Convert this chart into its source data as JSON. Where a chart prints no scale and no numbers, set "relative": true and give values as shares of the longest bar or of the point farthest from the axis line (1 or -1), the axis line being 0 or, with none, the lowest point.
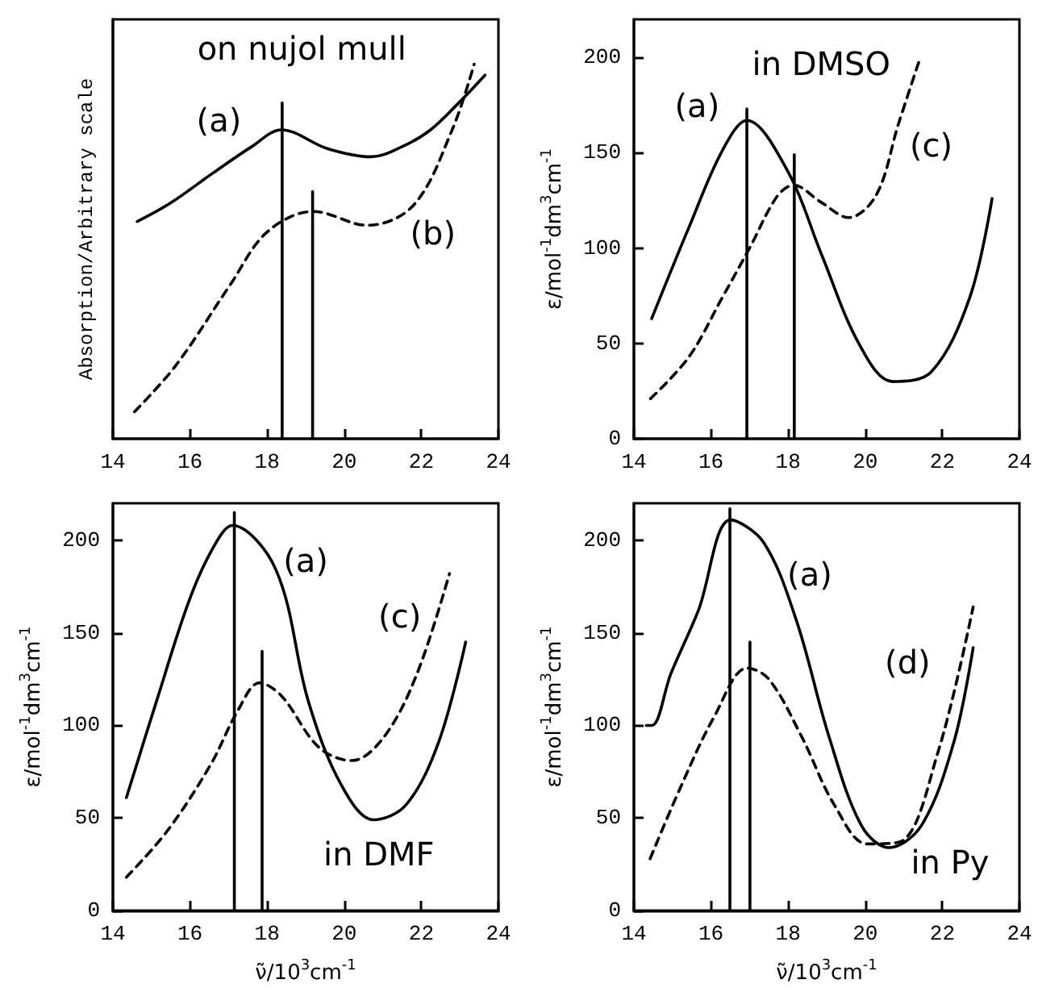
{
  "chart_data": [
    {
      "type": "line",
      "relative": true,
      "ylabel": "Absorption/Arbitrary scale",
      "xlim": [
        14,
        24
      ],
      "xticks": [
        14,
        16,
        18,
        20,
        22,
        24
      ],
      "tick_labels": "x",
      "marker": "none",
      "grid": false,
      "series": [
        {
          "color": "#000000",
          "line_style": "solid",
          "x": [
            14.63,
            15.5,
            16.6,
            17.6,
            18.37,
            19.56,
            20.7,
            21.5,
            22.24,
            23.0,
            23.65
          ],
          "values": [
            0.58,
            0.63,
            0.71,
            0.78,
            0.825,
            0.775,
            0.753,
            0.78,
            0.825,
            0.9,
            0.971
          ]
        },
        {
          "color": "#000000",
          "line_style": "dashed",
          "x": [
            14.56,
            15.62,
            17.03,
            18.0,
            19.2,
            20.6,
            21.8,
            22.8,
            23.37
          ],
          "values": [
            0.072,
            0.194,
            0.409,
            0.552,
            0.607,
            0.57,
            0.624,
            0.825,
            1.0
          ]
        },
        {
          "color": "#000000",
          "line_style": "solid",
          "x": [
            18.39,
            18.39
          ],
          "values": [
            0,
            0.897
          ]
        },
        {
          "color": "#000000",
          "line_style": "solid",
          "x": [
            19.18,
            19.18
          ],
          "values": [
            0,
            0.66
          ]
        }
      ],
      "annotations": [
        "on nujol mull",
        "(a)",
        "(b)"
      ]
    },
    {
      "type": "line",
      "ylabel": "ε/mol$^{-1}$dm$^{3}$cm$^{-1}$",
      "xlim": [
        14,
        24
      ],
      "xticks": [
        14,
        16,
        18,
        20,
        22,
        24
      ],
      "ylim": [
        0,
        220
      ],
      "yticks": [
        0,
        50,
        100,
        150,
        200
      ],
      "marker": "none",
      "grid": false,
      "series": [
        {
          "color": "#000000",
          "line_style": "solid",
          "x": [
            14.46,
            15.43,
            16.29,
            16.93,
            18.0,
            18.86,
            19.86,
            20.71,
            21.71,
            22.71,
            23.29
          ],
          "values": [
            63,
            111,
            151,
            167,
            140,
            97,
            49,
            30,
            35,
            74,
            126
          ]
        },
        {
          "color": "#000000",
          "line_style": "dashed",
          "x": [
            14.43,
            15.43,
            16.29,
            17.0,
            17.71,
            18.14,
            18.86,
            19.57,
            20.29,
            20.86,
            21.43
          ],
          "values": [
            21,
            43,
            74,
            100,
            127,
            133,
            124,
            116,
            128,
            165,
            200
          ]
        },
        {
          "color": "#000000",
          "line_style": "solid",
          "x": [
            16.93,
            16.93
          ],
          "values": [
            0,
            173
          ]
        },
        {
          "color": "#000000",
          "line_style": "solid",
          "x": [
            18.16,
            18.16
          ],
          "values": [
            0,
            149
          ]
        }
      ],
      "annotations": [
        "in DMSO",
        "(a)",
        "(c)"
      ]
    },
    {
      "type": "line",
      "ylabel": "ε/mol$^{-1}$dm$^{3}$cm$^{-1}$",
      "xlabel": "ν̃/10$^{3}$cm$^{-1}$",
      "xlim": [
        14,
        24
      ],
      "xticks": [
        14,
        16,
        18,
        20,
        22,
        24
      ],
      "ylim": [
        0,
        220
      ],
      "yticks": [
        0,
        50,
        100,
        150,
        200
      ],
      "marker": "none",
      "grid": false,
      "series": [
        {
          "color": "#000000",
          "line_style": "solid",
          "x": [
            14.35,
            15.13,
            15.97,
            16.6,
            17.1,
            18.23,
            19.07,
            19.92,
            20.76,
            21.6,
            22.45,
            23.15
          ],
          "values": [
            61,
            113,
            167,
            196,
            208,
            184,
            113,
            68,
            49,
            57,
            91,
            145
          ]
        },
        {
          "color": "#000000",
          "line_style": "dashed",
          "x": [
            14.35,
            15.41,
            16.54,
            17.24,
            17.8,
            18.37,
            19.35,
            20.2,
            21.04,
            21.89,
            22.73
          ],
          "values": [
            18,
            43,
            79,
            108,
            123,
            116,
            88,
            81,
            94,
            128,
            182
          ]
        },
        {
          "color": "#000000",
          "line_style": "solid",
          "x": [
            17.15,
            17.15
          ],
          "values": [
            0,
            215
          ]
        },
        {
          "color": "#000000",
          "line_style": "solid",
          "x": [
            17.87,
            17.87
          ],
          "values": [
            0,
            140
          ]
        }
      ],
      "annotations": [
        "in DMF",
        "(a)",
        "(c)"
      ]
    },
    {
      "type": "line",
      "ylabel": "ε/mol$^{-1}$dm$^{3}$cm$^{-1}$",
      "xlabel": "ν̃/10$^{3}$cm$^{-1}$",
      "xlim": [
        14,
        24
      ],
      "xticks": [
        14,
        16,
        18,
        20,
        22,
        24
      ],
      "ylim": [
        0,
        220
      ],
      "yticks": [
        0,
        50,
        100,
        150,
        200
      ],
      "marker": "none",
      "grid": false,
      "series": [
        {
          "color": "#000000",
          "line_style": "solid",
          "x": [
            14.32,
            14.47,
            14.96,
            15.67,
            16.51,
            17.36,
            18.21,
            19.06,
            19.9,
            20.61,
            21.46,
            22.3,
            22.8
          ],
          "values": [
            100,
            100,
            128,
            162,
            211,
            199,
            157,
            94,
            46,
            34,
            46,
            91,
            142
          ]
        },
        {
          "color": "#000000",
          "line_style": "dashed",
          "x": [
            14.42,
            15.24,
            16.09,
            16.94,
            17.5,
            18.35,
            19.2,
            20.05,
            20.89,
            21.88,
            22.8
          ],
          "values": [
            28,
            68,
            105,
            131,
            125,
            94,
            57,
            36,
            37,
            85,
            164
          ]
        },
        {
          "color": "#000000",
          "line_style": "solid",
          "x": [
            16.49,
            16.49
          ],
          "values": [
            0,
            217
          ]
        },
        {
          "color": "#000000",
          "line_style": "solid",
          "x": [
            17.01,
            17.01
          ],
          "values": [
            0,
            145
          ]
        }
      ],
      "annotations": [
        "in Py",
        "(a)",
        "(d)"
      ]
    }
  ]
}
